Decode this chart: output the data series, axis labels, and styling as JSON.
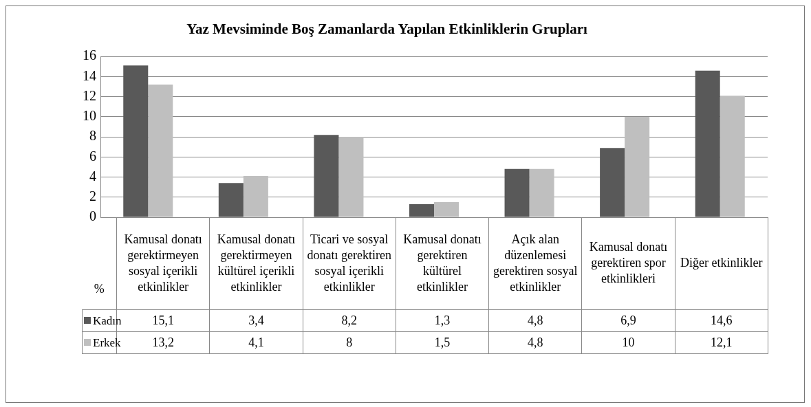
{
  "chart_data": {
    "type": "bar",
    "title": "Yaz Mevsiminde Boş Zamanlarda Yapılan Etkinliklerin Grupları",
    "ylabel": "%",
    "categories": [
      "Kamusal donatı gerektirmeyen sosyal içerikli etkinlikler",
      "Kamusal donatı gerektirmeyen kültürel içerikli etkinlikler",
      "Ticari ve sosyal donatı gerektiren sosyal içerikli etkinlikler",
      "Kamusal donatı gerektiren kültürel etkinlikler",
      "Açık alan düzenlemesi gerektiren sosyal etkinlikler",
      "Kamusal donatı gerektiren spor etkinlikleri",
      "Diğer etkinlikler"
    ],
    "series": [
      {
        "name": "Kadın",
        "color": "#595959",
        "values": [
          15.1,
          3.4,
          8.2,
          1.3,
          4.8,
          6.9,
          14.6
        ],
        "value_labels": [
          "15,1",
          "3,4",
          "8,2",
          "1,3",
          "4,8",
          "6,9",
          "14,6"
        ]
      },
      {
        "name": "Erkek",
        "color": "#bfbfbf",
        "values": [
          13.2,
          4.1,
          8,
          1.5,
          4.8,
          10,
          12.1
        ],
        "value_labels": [
          "13,2",
          "4,1",
          "8",
          "1,5",
          "4,8",
          "10",
          "12,1"
        ]
      }
    ],
    "ylim": [
      0,
      16
    ],
    "yticks": [
      0,
      2,
      4,
      6,
      8,
      10,
      12,
      14,
      16
    ],
    "grid": "y",
    "legend": "bottom left"
  }
}
